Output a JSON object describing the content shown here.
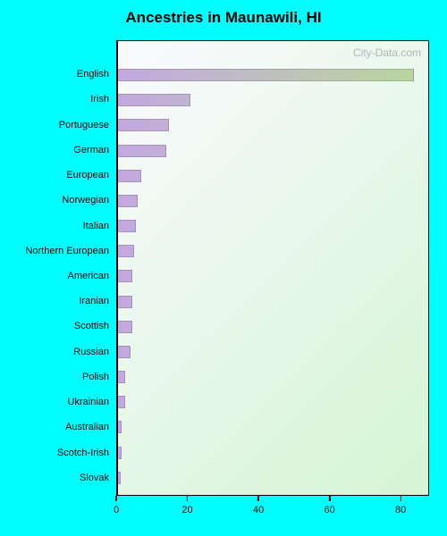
{
  "page": {
    "background_color": "#00ffff"
  },
  "chart": {
    "type": "horizontal-bar",
    "title": "Ancestries in Maunawili, HI",
    "title_fontsize": 17,
    "watermark": "City-Data.com",
    "plot_bg_gradient": {
      "from": "#fafaff",
      "to": "#d4f5d4",
      "angle_deg": 135
    },
    "bar_gradient": {
      "from": "#c3a8e0",
      "to": "#b8d89a",
      "angle_deg": 90
    },
    "categories": [
      "English",
      "Irish",
      "Portuguese",
      "German",
      "European",
      "Norwegian",
      "Italian",
      "Northern European",
      "American",
      "Iranian",
      "Scottish",
      "Russian",
      "Polish",
      "Ukrainian",
      "Australian",
      "Scotch-Irish",
      "Slovak"
    ],
    "values": [
      84,
      21,
      15,
      14,
      7,
      6,
      5.5,
      5,
      4.5,
      4.5,
      4.5,
      4,
      2.5,
      2.5,
      1.5,
      1.5,
      1.2
    ],
    "x_ticks": [
      0,
      20,
      40,
      60,
      80
    ],
    "x_max": 88,
    "label_fontsize": 11
  }
}
